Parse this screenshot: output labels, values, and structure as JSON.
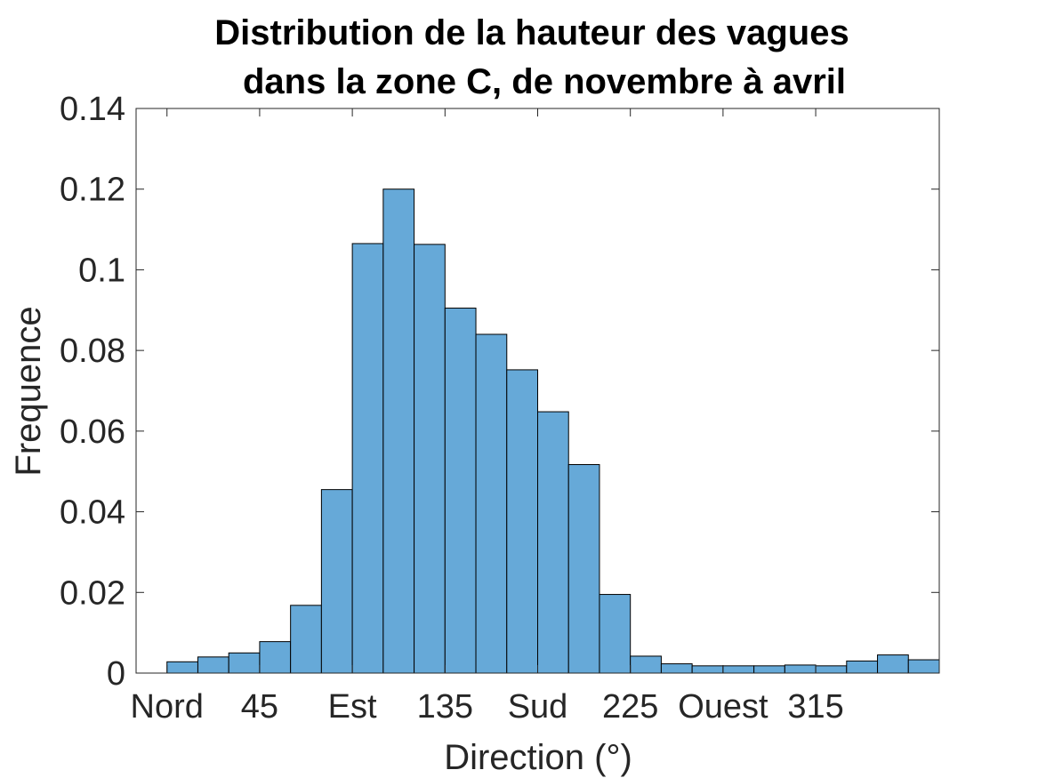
{
  "chart_data": {
    "type": "bar",
    "title": [
      "Distribution de la hauteur des vagues",
      "dans la zone C, de novembre à avril"
    ],
    "xlabel": "Direction (°)",
    "ylabel": "Frequence",
    "xlim": [
      -15,
      375
    ],
    "ylim": [
      0,
      0.14
    ],
    "grid": false,
    "bin_width": 15,
    "bin_edges_start": 0,
    "values": [
      0.0028,
      0.004,
      0.005,
      0.0078,
      0.0168,
      0.0455,
      0.1065,
      0.12,
      0.1063,
      0.0905,
      0.084,
      0.0752,
      0.0648,
      0.0517,
      0.0195,
      0.0042,
      0.0023,
      0.0018,
      0.0018,
      0.0018,
      0.002,
      0.0018,
      0.003,
      0.0045,
      0.0033
    ],
    "yticks": [
      {
        "value": 0,
        "label": "0"
      },
      {
        "value": 0.02,
        "label": "0.02"
      },
      {
        "value": 0.04,
        "label": "0.04"
      },
      {
        "value": 0.06,
        "label": "0.06"
      },
      {
        "value": 0.08,
        "label": "0.08"
      },
      {
        "value": 0.1,
        "label": "0.1"
      },
      {
        "value": 0.12,
        "label": "0.12"
      },
      {
        "value": 0.14,
        "label": "0.14"
      }
    ],
    "xticks": [
      {
        "value": 0,
        "label": "Nord"
      },
      {
        "value": 45,
        "label": "45"
      },
      {
        "value": 90,
        "label": "Est"
      },
      {
        "value": 135,
        "label": "135"
      },
      {
        "value": 180,
        "label": "Sud"
      },
      {
        "value": 225,
        "label": "225"
      },
      {
        "value": 270,
        "label": "Ouest"
      },
      {
        "value": 315,
        "label": "315"
      }
    ],
    "bar_color": "#66A9D8",
    "edge_color": "#000000"
  }
}
